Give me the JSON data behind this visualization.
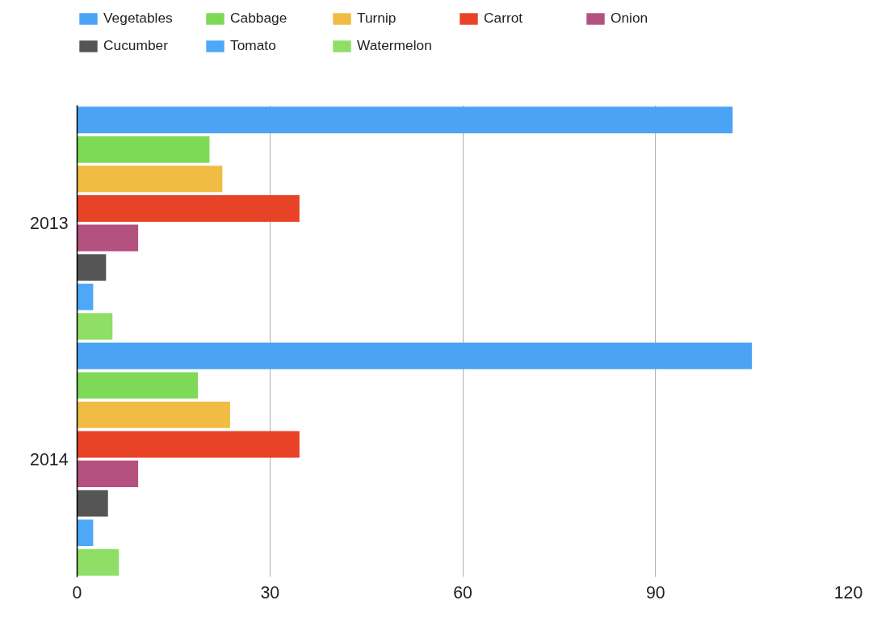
{
  "chart_data": {
    "type": "bar",
    "orientation": "horizontal",
    "categories": [
      "2013",
      "2014"
    ],
    "series": [
      {
        "name": "Vegetables",
        "color": "#4aa3f5",
        "values": [
          102,
          105
        ]
      },
      {
        "name": "Cabbage",
        "color": "#7ed957",
        "values": [
          20.6,
          18.8
        ]
      },
      {
        "name": "Turnip",
        "color": "#f0bc43",
        "values": [
          22.6,
          23.8
        ]
      },
      {
        "name": "Carrot",
        "color": "#e84326",
        "values": [
          34.6,
          34.6
        ]
      },
      {
        "name": "Onion",
        "color": "#b5517f",
        "values": [
          9.5,
          9.5
        ]
      },
      {
        "name": "Cucumber",
        "color": "#555555",
        "values": [
          4.5,
          4.8
        ]
      },
      {
        "name": "Tomato",
        "color": "#4fa8f7",
        "values": [
          2.5,
          2.5
        ]
      },
      {
        "name": "Watermelon",
        "color": "#8fdf66",
        "values": [
          5.5,
          6.5
        ]
      }
    ],
    "xlim": [
      0,
      120
    ],
    "xticks": [
      0,
      30,
      60,
      90,
      120
    ],
    "grid": "x",
    "legend": "top"
  }
}
